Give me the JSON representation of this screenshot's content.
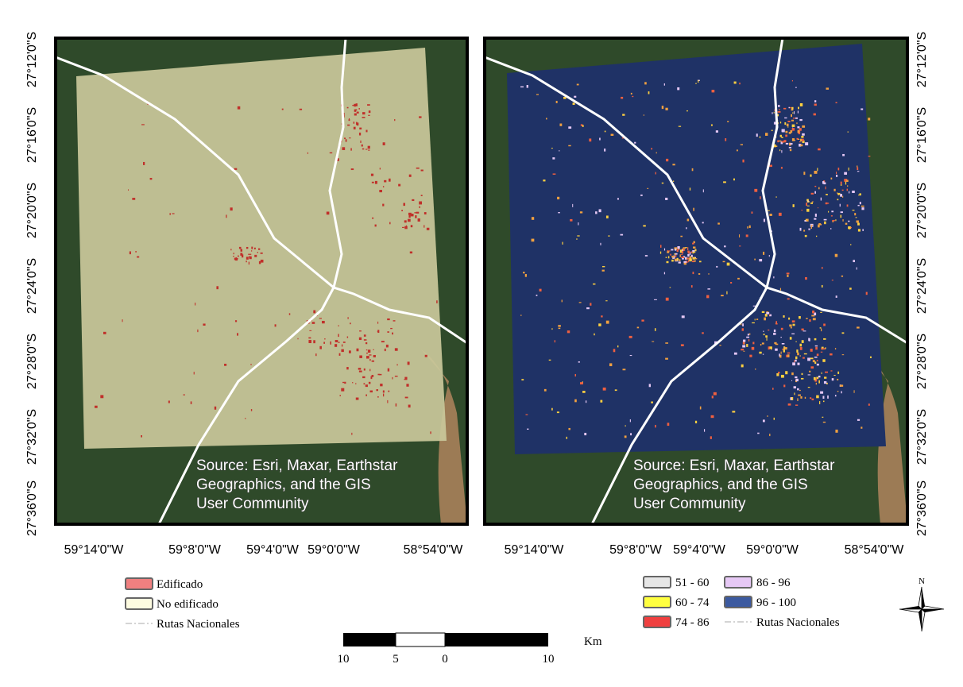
{
  "maps": [
    {
      "lat_labels": [
        "27°12'0\"S",
        "27°16'0\"S",
        "27°20'0\"S",
        "27°24'0\"S",
        "27°28'0\"S",
        "27°32'0\"S",
        "27°36'0\"S"
      ],
      "lon_labels": [
        "59°14'0\"W",
        "59°8'0\"W",
        "59°4'0\"W",
        "59°0'0\"W",
        "58°54'0\"W"
      ],
      "source": [
        "Source: Esri, Maxar, Earthstar",
        "Geographics, and the GIS",
        "User Community"
      ]
    },
    {
      "lat_labels": [
        "27°12'0\"S",
        "27°16'0\"S",
        "27°20'0\"S",
        "27°24'0\"S",
        "27°28'0\"S",
        "27°32'0\"S",
        "27°36'0\"S"
      ],
      "lon_labels": [
        "59°14'0\"W",
        "59°8'0\"W",
        "59°4'0\"W",
        "59°0'0\"W",
        "58°54'0\"W"
      ],
      "source": [
        "Source: Esri, Maxar, Earthstar",
        "Geographics, and the GIS",
        "User Community"
      ]
    }
  ],
  "legend_left": [
    {
      "label": "Edificado",
      "color": "#f08080"
    },
    {
      "label": "No edificado",
      "color": "#fdfbe0"
    },
    {
      "label": "Rutas Nacionales"
    }
  ],
  "legend_right": [
    {
      "label": "51 - 60",
      "color": "#e6e6e6"
    },
    {
      "label": "86 - 96",
      "color": "#e6c8f5"
    },
    {
      "label": "60 - 74",
      "color": "#ffff40"
    },
    {
      "label": "96 - 100",
      "color": "#3c5aa0"
    },
    {
      "label": "74 - 86",
      "color": "#f04040"
    },
    {
      "label": "Rutas Nacionales"
    }
  ],
  "scale_bar": {
    "labels": [
      "10",
      "5",
      "0",
      "10"
    ],
    "unit": "Km"
  },
  "north": "N"
}
